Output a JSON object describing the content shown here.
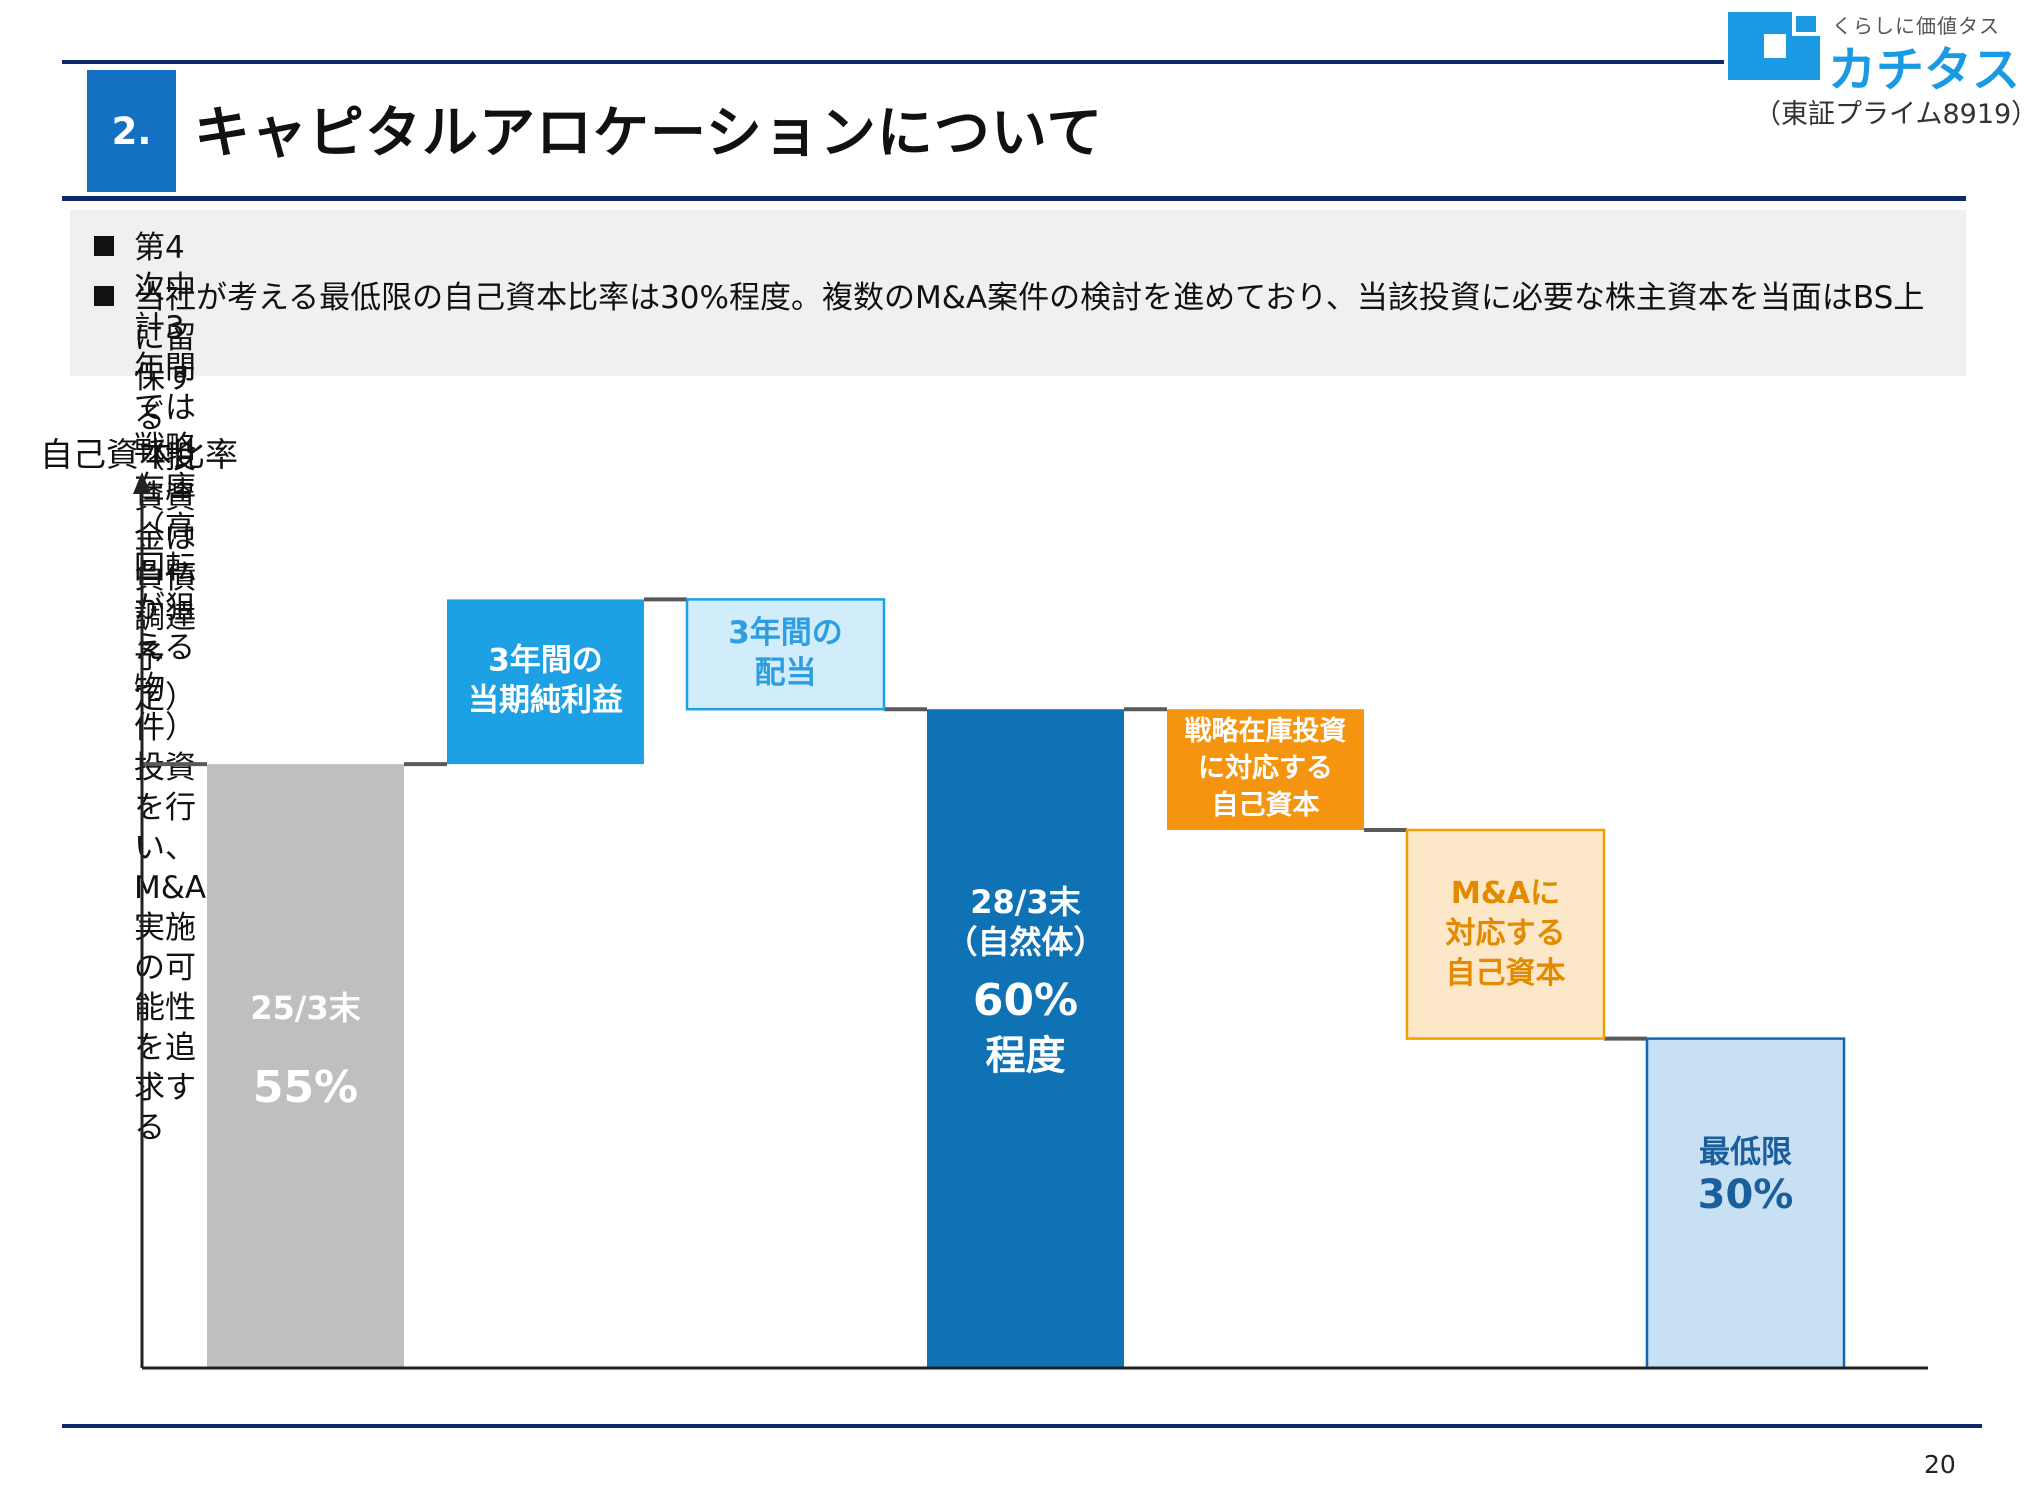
{
  "header": {
    "section_number": "2.",
    "title": "キャピタルアロケーションについて"
  },
  "logo": {
    "tagline": "くらしに価値タス",
    "name": "カチタス",
    "exchange": "（東証プライム8919）"
  },
  "summary": {
    "bullets": [
      "第4次中計3年間では戦略在庫（高回転が狙える物件）投資を行い、M&A実施の可能性を追求する",
      "当社が考える最低限の自己資本比率は30%程度。複数のM&A案件の検討を進めており、当該投資に必要な株主資本を当面はBS上",
      "に留保する（投資資金は負債調達予定）"
    ]
  },
  "chart_data": {
    "type": "waterfall",
    "ylabel": "自己資本比率",
    "steps": [
      {
        "label_lines": [
          "25/3末"
        ],
        "value_text": "55%",
        "value": 55,
        "kind": "total"
      },
      {
        "label_lines": [
          "3年間の",
          "当期純利益"
        ],
        "value": 15,
        "kind": "increase"
      },
      {
        "label_lines": [
          "3年間の",
          "配当"
        ],
        "value": -10,
        "kind": "decrease"
      },
      {
        "label_lines": [
          "28/3末",
          "（自然体）"
        ],
        "value_text": "60%",
        "value_note": "程度",
        "value": 60,
        "kind": "total"
      },
      {
        "label_lines": [
          "戦略在庫投資",
          "に対応する",
          "自己資本"
        ],
        "value": -11,
        "kind": "decrease"
      },
      {
        "label_lines": [
          "M&Aに",
          "対応する",
          "自己資本"
        ],
        "value": -19,
        "kind": "decrease"
      },
      {
        "label_lines": [
          "最低限"
        ],
        "value_text": "30%",
        "value": 30,
        "kind": "total"
      }
    ],
    "colors": {
      "start_total": "#bfbfbf",
      "increase": "#1ea1e4",
      "dividend": "#d1ecfb",
      "dividend_border": "#1ea1e4",
      "dividend_text": "#2e9ee0",
      "mid_total": "#0e72b5",
      "strategic": "#f5950f",
      "ma": "#fce7c8",
      "ma_border": "#f0a000",
      "ma_text": "#e28a00",
      "end_total": "#c7e0f3",
      "end_border": "#1267b0",
      "end_text": "#1b5e9c",
      "connector": "#595959",
      "axis": "#222222"
    }
  },
  "page_number": "20"
}
